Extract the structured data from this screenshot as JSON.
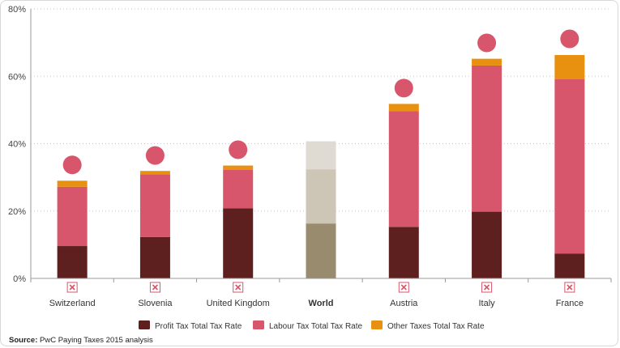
{
  "chart_data": {
    "type": "bar",
    "stacked": true,
    "categories": [
      "Switzerland",
      "Slovenia",
      "United Kingdom",
      "World",
      "Austria",
      "Italy",
      "France"
    ],
    "highlight_category": "World",
    "series": [
      {
        "name": "Profit Tax Total Tax Rate",
        "color": "#5e1f1f",
        "highlight_color": "#998b6e",
        "values": [
          9.6,
          12.3,
          20.8,
          16.3,
          15.3,
          19.8,
          7.4
        ]
      },
      {
        "name": "Labour Tax Total Tax Rate",
        "color": "#d8566b",
        "highlight_color": "#cdc5b6",
        "values": [
          17.6,
          18.6,
          11.4,
          16.1,
          34.3,
          43.4,
          51.7
        ]
      },
      {
        "name": "Other Taxes Total Tax Rate",
        "color": "#e8900f",
        "highlight_color": "#e0dbd2",
        "values": [
          1.8,
          1.0,
          1.3,
          8.3,
          2.2,
          2.0,
          7.2
        ]
      }
    ],
    "total_markers": {
      "color": "#d8566b",
      "values": [
        33.7,
        36.5,
        38.2,
        null,
        56.5,
        69.9,
        71.1
      ]
    },
    "category_icons": [
      "x-box-icon",
      "x-box-icon",
      "x-box-icon",
      null,
      "x-box-icon",
      "x-box-icon",
      "x-box-icon"
    ],
    "icon_color": "#d8566b",
    "ylim": [
      0,
      80
    ],
    "yticks": [
      0,
      20,
      40,
      60,
      80
    ],
    "ytick_labels": [
      "0%",
      "20%",
      "40%",
      "60%",
      "80%"
    ],
    "grid": true,
    "legend_position": "bottom",
    "title": "",
    "xlabel": "",
    "ylabel": ""
  },
  "source": {
    "label": "Source:",
    "text": " PwC Paying Taxes 2015 analysis"
  }
}
